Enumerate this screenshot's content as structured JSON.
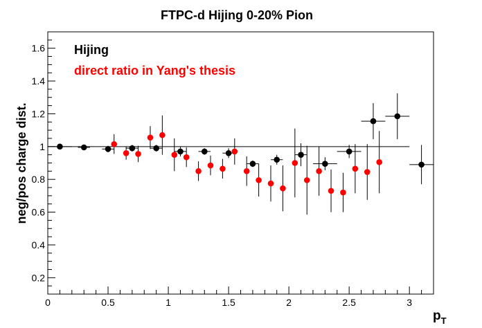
{
  "chart_data": {
    "type": "scatter",
    "title": "FTPC-d Hijing 0-20% Pion",
    "xlabel": "p",
    "xlabel_sub": "T",
    "ylabel": "neg/pos charge dist.",
    "xlim": [
      0,
      3.2
    ],
    "ylim": [
      0.1,
      1.7
    ],
    "x_ticks": [
      "0",
      "0.5",
      "1",
      "1.5",
      "2",
      "2.5",
      "3"
    ],
    "y_ticks": [
      "0.2",
      "0.4",
      "0.6",
      "0.8",
      "1",
      "1.2",
      "1.4",
      "1.6"
    ],
    "x_tick_values": [
      0,
      0.5,
      1,
      1.5,
      2,
      2.5,
      3
    ],
    "y_tick_values": [
      0.2,
      0.4,
      0.6,
      0.8,
      1.0,
      1.2,
      1.4,
      1.6
    ],
    "reference_line": 1.0,
    "grid": false,
    "legend_position": "top-left",
    "series": [
      {
        "name": "Hijing",
        "color": "#000000",
        "points": [
          {
            "x": 0.1,
            "y": 1.0,
            "xerr": 0.1,
            "yerr": 0.01
          },
          {
            "x": 0.3,
            "y": 0.995,
            "xerr": 0.05,
            "yerr": 0.01
          },
          {
            "x": 0.5,
            "y": 0.985,
            "xerr": 0.05,
            "yerr": 0.02
          },
          {
            "x": 0.7,
            "y": 0.99,
            "xerr": 0.05,
            "yerr": 0.02
          },
          {
            "x": 0.9,
            "y": 0.99,
            "xerr": 0.05,
            "yerr": 0.02
          },
          {
            "x": 1.1,
            "y": 0.97,
            "xerr": 0.05,
            "yerr": 0.03
          },
          {
            "x": 1.3,
            "y": 0.97,
            "xerr": 0.05,
            "yerr": 0.02
          },
          {
            "x": 1.5,
            "y": 0.96,
            "xerr": 0.05,
            "yerr": 0.03
          },
          {
            "x": 1.7,
            "y": 0.895,
            "xerr": 0.05,
            "yerr": 0.02
          },
          {
            "x": 1.9,
            "y": 0.92,
            "xerr": 0.05,
            "yerr": 0.03
          },
          {
            "x": 2.1,
            "y": 0.95,
            "xerr": 0.05,
            "yerr": 0.07
          },
          {
            "x": 2.3,
            "y": 0.895,
            "xerr": 0.1,
            "yerr": 0.04
          },
          {
            "x": 2.5,
            "y": 0.97,
            "xerr": 0.1,
            "yerr": 0.04
          },
          {
            "x": 2.7,
            "y": 1.155,
            "xerr": 0.1,
            "yerr": 0.11
          },
          {
            "x": 2.9,
            "y": 1.185,
            "xerr": 0.1,
            "yerr": 0.14
          },
          {
            "x": 3.1,
            "y": 0.89,
            "xerr": 0.1,
            "yerr": 0.12
          }
        ]
      },
      {
        "name": "direct ratio in Yang's thesis",
        "color": "#ff0000",
        "points": [
          {
            "x": 0.55,
            "y": 1.015,
            "yerr": 0.06
          },
          {
            "x": 0.65,
            "y": 0.96,
            "yerr": 0.04
          },
          {
            "x": 0.75,
            "y": 0.955,
            "yerr": 0.05
          },
          {
            "x": 0.85,
            "y": 1.055,
            "yerr": 0.07
          },
          {
            "x": 0.95,
            "y": 1.07,
            "yerr": 0.12
          },
          {
            "x": 1.05,
            "y": 0.95,
            "yerr": 0.1
          },
          {
            "x": 1.15,
            "y": 0.935,
            "yerr": 0.06
          },
          {
            "x": 1.25,
            "y": 0.85,
            "yerr": 0.06
          },
          {
            "x": 1.35,
            "y": 0.885,
            "yerr": 0.06
          },
          {
            "x": 1.45,
            "y": 0.865,
            "yerr": 0.06
          },
          {
            "x": 1.55,
            "y": 0.97,
            "yerr": 0.08
          },
          {
            "x": 1.65,
            "y": 0.85,
            "yerr": 0.09
          },
          {
            "x": 1.75,
            "y": 0.795,
            "yerr": 0.1
          },
          {
            "x": 1.85,
            "y": 0.775,
            "yerr": 0.11
          },
          {
            "x": 1.95,
            "y": 0.745,
            "yerr": 0.14
          },
          {
            "x": 2.05,
            "y": 0.9,
            "yerr": 0.21
          },
          {
            "x": 2.15,
            "y": 0.795,
            "yerr": 0.21
          },
          {
            "x": 2.25,
            "y": 0.85,
            "yerr": 0.15
          },
          {
            "x": 2.35,
            "y": 0.73,
            "yerr": 0.13
          },
          {
            "x": 2.45,
            "y": 0.72,
            "yerr": 0.12
          },
          {
            "x": 2.55,
            "y": 0.865,
            "yerr": 0.15
          },
          {
            "x": 2.65,
            "y": 0.845,
            "yerr": 0.17
          },
          {
            "x": 2.75,
            "y": 0.905,
            "yerr": 0.19
          }
        ]
      }
    ]
  }
}
